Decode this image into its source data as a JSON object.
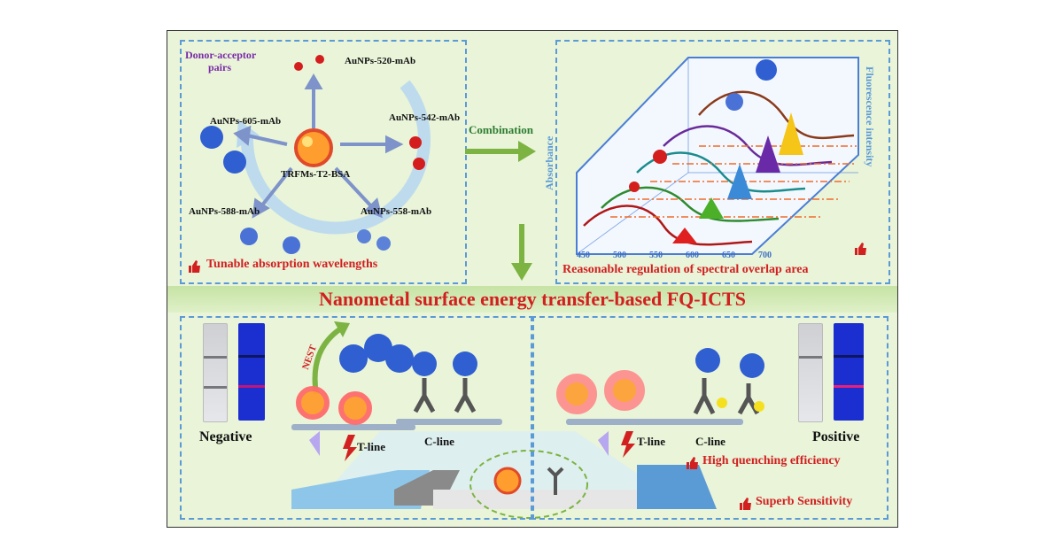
{
  "top_left": {
    "pairs_label_1": "Donor-acceptor",
    "pairs_label_2": "pairs",
    "center_label": "TRFMs-T2-BSA",
    "probes": [
      "AuNPs-520-mAb",
      "AuNPs-542-mAb",
      "AuNPs-558-mAb",
      "AuNPs-588-mAb",
      "AuNPs-605-mAb"
    ],
    "caption": "Tunable absorption wavelengths"
  },
  "combination_label": "Combination",
  "top_right": {
    "axis_left": "Absorbance",
    "axis_right": "Fluorescence intensity",
    "ticks": [
      "450",
      "500",
      "550",
      "600",
      "650",
      "700"
    ],
    "caption": "Reasonable regulation of spectral overlap area"
  },
  "banner_title": "Nanometal surface energy transfer-based FQ-ICTS",
  "bottom": {
    "negative_label": "Negative",
    "positive_label": "Positive",
    "nest_label": "NEST",
    "t_line_left": "T-line",
    "c_line_left": "C-line",
    "t_line_right": "T-line",
    "c_line_right": "C-line",
    "quench_caption": "High quenching efficiency",
    "sensitivity_caption": "Superb Sensitivity"
  },
  "colors": {
    "background": "#e9f4d9",
    "panel_border": "#5a9ad6",
    "caption_red": "#d21f1f",
    "label_purple": "#7a2aa8",
    "arrow_green": "#7cb342",
    "strip_blue": "#1b2fd0"
  }
}
